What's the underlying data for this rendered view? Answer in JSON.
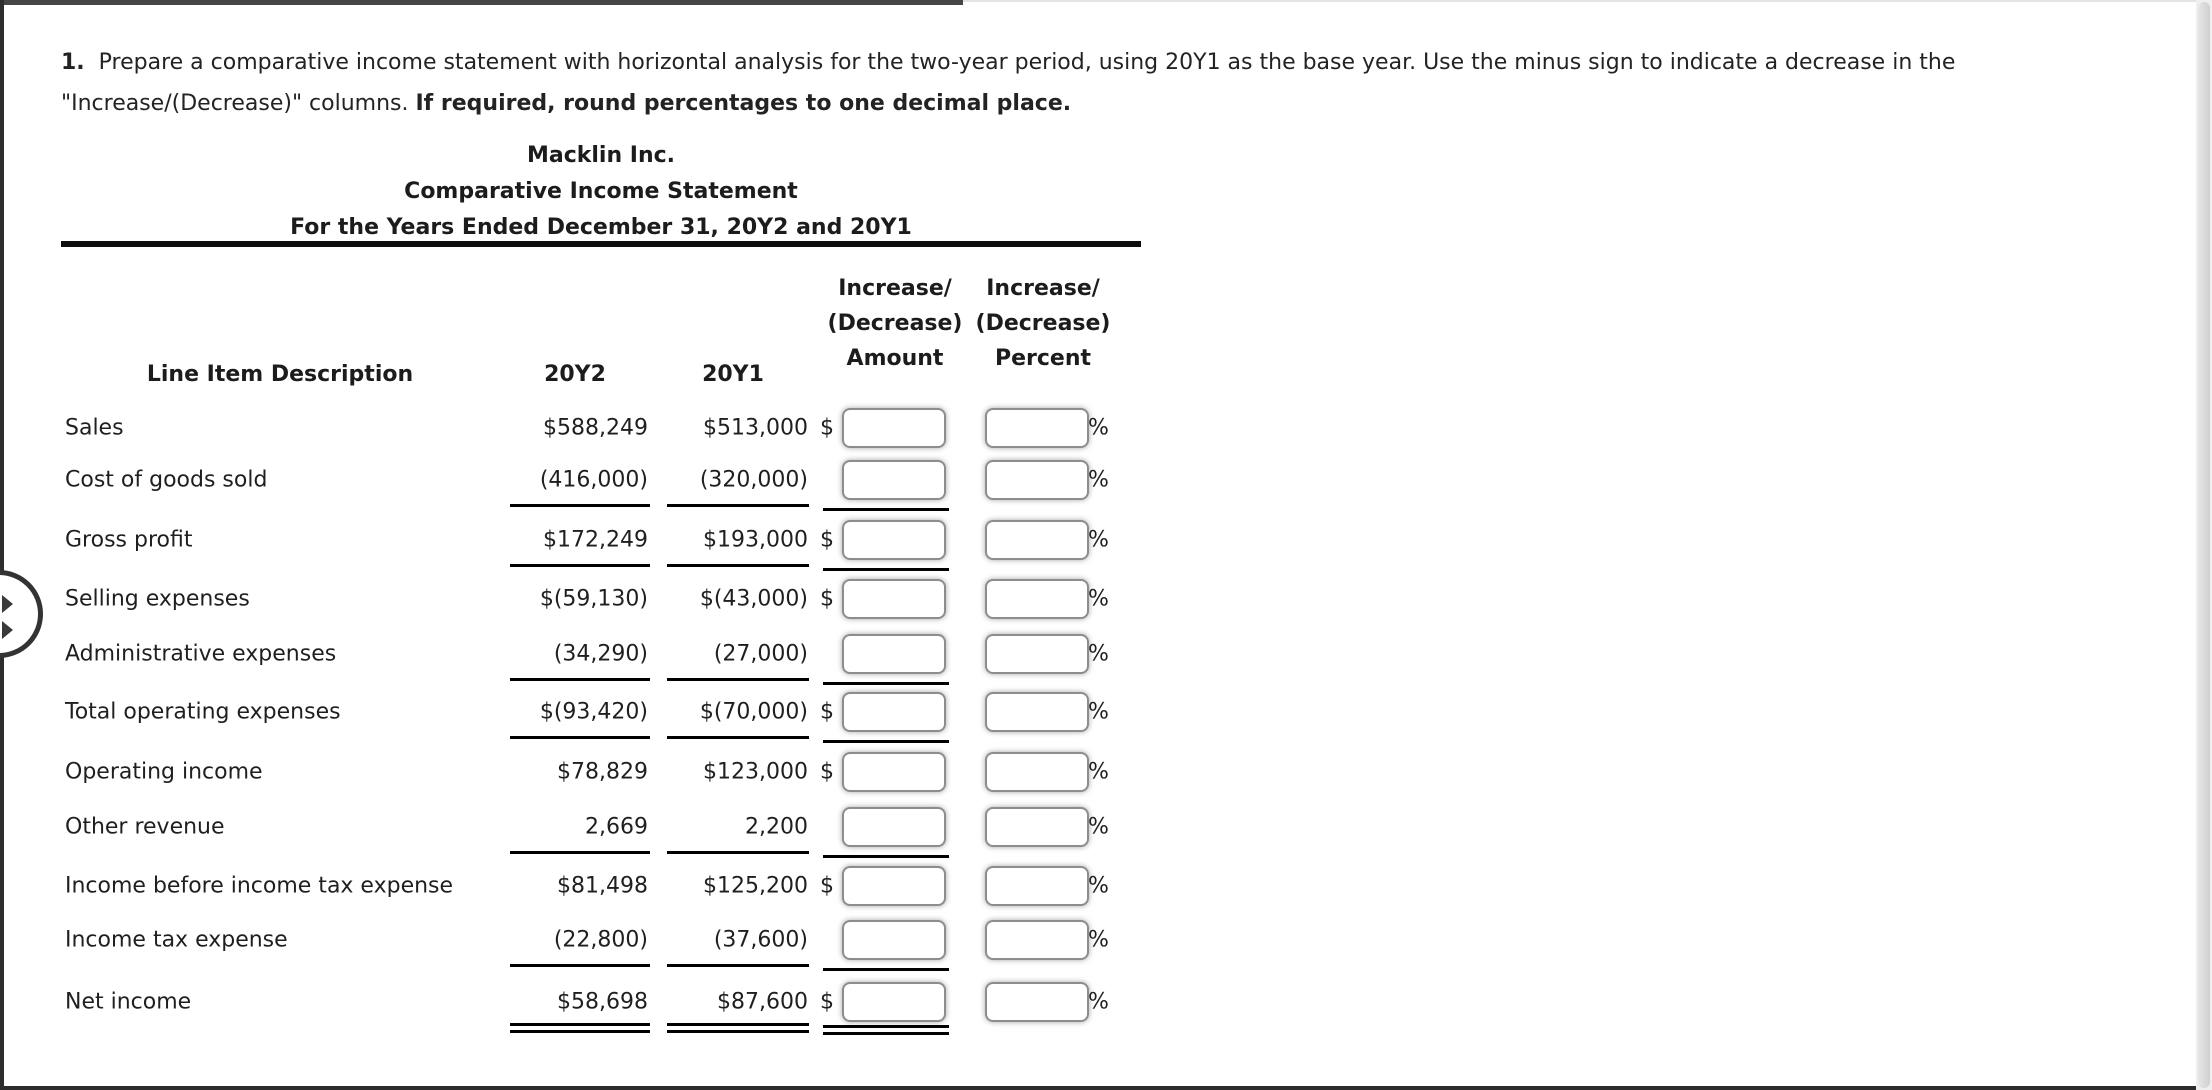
{
  "instructions": {
    "number": "1.",
    "line1": "Prepare a comparative income statement with horizontal analysis for the two-year period, using 20Y1 as the base year. Use the minus sign to indicate a decrease in the",
    "line2_regular": "\"Increase/(Decrease)\" columns.",
    "line2_bold": "If required, round percentages to one decimal place."
  },
  "statement": {
    "company": "Macklin Inc.",
    "title": "Comparative Income Statement",
    "period": "For the Years Ended December 31, 20Y2 and 20Y1"
  },
  "table": {
    "headers": {
      "line_item": "Line Item Description",
      "col_20y2": "20Y2",
      "col_20y1": "20Y1",
      "amount_header": [
        "Increase/",
        "(Decrease)",
        "Amount"
      ],
      "percent_header": [
        "Increase/",
        "(Decrease)",
        "Percent"
      ],
      "dollar_prefix": "$",
      "percent_suffix": "%"
    },
    "rows": [
      {
        "label": "Sales",
        "y2": "$588,249",
        "y1": "$513,000",
        "dollar": true,
        "rule": "none",
        "amount_value": "",
        "percent_value": ""
      },
      {
        "label": "Cost of goods sold",
        "y2": "(416,000)",
        "y1": "(320,000)",
        "dollar": false,
        "rule": "single",
        "amount_value": "",
        "percent_value": ""
      },
      {
        "label": "Gross profit",
        "y2": "$172,249",
        "y1": "$193,000",
        "dollar": true,
        "rule": "single",
        "amount_value": "",
        "percent_value": ""
      },
      {
        "label": "Selling expenses",
        "y2": "$(59,130)",
        "y1": "$(43,000)",
        "dollar": true,
        "rule": "none",
        "amount_value": "",
        "percent_value": ""
      },
      {
        "label": "Administrative expenses",
        "y2": "(34,290)",
        "y1": "(27,000)",
        "dollar": false,
        "rule": "single",
        "amount_value": "",
        "percent_value": ""
      },
      {
        "label": "Total operating expenses",
        "y2": "$(93,420)",
        "y1": "$(70,000)",
        "dollar": true,
        "rule": "single",
        "amount_value": "",
        "percent_value": ""
      },
      {
        "label": "Operating income",
        "y2": "$78,829",
        "y1": "$123,000",
        "dollar": true,
        "rule": "none",
        "amount_value": "",
        "percent_value": ""
      },
      {
        "label": "Other revenue",
        "y2": "2,669",
        "y1": "2,200",
        "dollar": false,
        "rule": "single",
        "amount_value": "",
        "percent_value": ""
      },
      {
        "label": "Income before income tax expense",
        "y2": "$81,498",
        "y1": "$125,200",
        "dollar": true,
        "rule": "none",
        "amount_value": "",
        "percent_value": ""
      },
      {
        "label": "Income tax expense",
        "y2": "(22,800)",
        "y1": "(37,600)",
        "dollar": false,
        "rule": "single",
        "amount_value": "",
        "percent_value": ""
      },
      {
        "label": "Net income",
        "y2": "$58,698",
        "y1": "$87,600",
        "dollar": true,
        "rule": "double",
        "amount_value": "",
        "percent_value": ""
      }
    ]
  },
  "colors": {
    "rule_black": "#000000",
    "text": "#1f1f1f",
    "input_border": "#8d8d8d",
    "edge_dark": "#2d2d2d"
  }
}
